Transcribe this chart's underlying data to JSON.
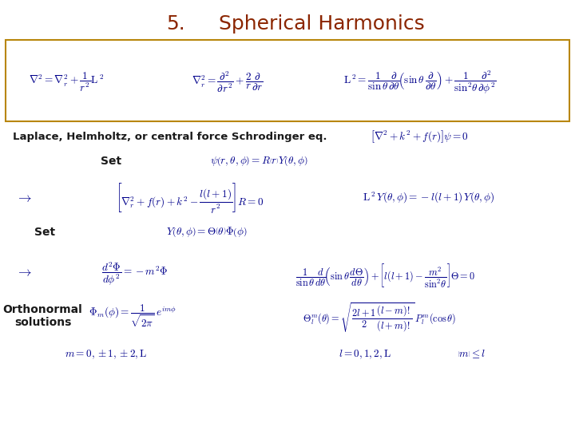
{
  "title_number": "5.",
  "title_text": "Spherical Harmonics",
  "title_color": "#8B2500",
  "title_fontsize": 18,
  "math_color": "#00008B",
  "label_color": "#1a1a1a",
  "bg_color": "#FFFFFF",
  "box_color": "#B8860B",
  "eq_top_1": "$\\nabla^2 = \\nabla_r^2 + \\dfrac{1}{r^2}\\mathrm{L}^{\\,2}$",
  "eq_top_2": "$\\nabla_r^2 = \\dfrac{\\partial^2}{\\partial r^2} + \\dfrac{2}{r}\\dfrac{\\partial}{\\partial r}$",
  "eq_top_3": "$\\mathrm{L}^{\\,2} = \\dfrac{1}{\\sin\\theta}\\dfrac{\\partial}{\\partial\\theta}\\!\\left(\\sin\\theta\\,\\dfrac{\\partial}{\\partial\\theta}\\right) + \\dfrac{1}{\\sin^2\\!\\theta}\\dfrac{\\partial^2}{\\partial\\phi^2}$",
  "eq_laplace": "Laplace, Helmholtz, or central force Schrodinger eq.",
  "eq_helmholtz": "$\\left[\\nabla^2 + k^2 + f(r)\\right]\\psi = 0$",
  "label_set1": "Set",
  "eq_set1": "$\\psi\\left(r,\\theta,\\phi\\right) = R\\left(r\\right)Y\\left(\\theta,\\phi\\right)$",
  "arrow1": "$\\rightarrow$",
  "eq_arrow1_left": "$\\left[\\nabla_r^2 + f(r) + k^2 - \\dfrac{l(l+1)}{r^2}\\right]R = 0$",
  "eq_arrow1_right": "$\\mathrm{L}^{\\,2}\\,Y(\\theta,\\phi) = -l(l+1)\\,Y(\\theta,\\phi)$",
  "label_set2": "Set",
  "eq_set2": "$Y\\left(\\theta,\\phi\\right) = \\Theta\\left(\\theta\\right)\\Phi\\left(\\phi\\right)$",
  "arrow2": "$\\rightarrow$",
  "eq_arrow2_left": "$\\dfrac{d^2\\Phi}{d\\phi^2} = -m^2\\Phi$",
  "eq_arrow2_right": "$\\dfrac{1}{\\sin\\theta}\\dfrac{d}{d\\theta}\\!\\left(\\sin\\theta\\,\\dfrac{d\\Theta}{d\\theta}\\right) + \\left[l(l+1) - \\dfrac{m^2}{\\sin^2\\!\\theta}\\right]\\Theta = 0$",
  "label_ortho": "Orthonormal\nsolutions",
  "eq_ortho_left": "$\\Phi_m(\\phi) = \\dfrac{1}{\\sqrt{2\\pi}}\\,e^{im\\phi}$",
  "eq_ortho_right": "$\\Theta_l^m(\\theta) = \\sqrt{\\dfrac{2l+1}{2}\\dfrac{(l-m)!}{(l+m)!}}\\,P_l^m(\\cos\\theta)$",
  "eq_m_range": "$m = 0, \\pm 1, \\pm 2, \\mathrm{L}$",
  "eq_l_range": "$l = 0, 1, 2, \\mathrm{L}$",
  "eq_m_constraint": "$\\left|m\\right| \\leq l$"
}
